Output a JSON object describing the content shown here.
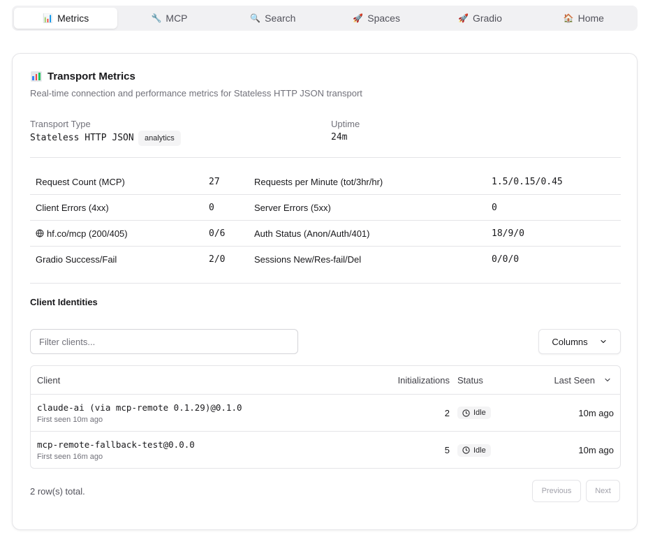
{
  "tabs": [
    {
      "label": "Metrics",
      "icon": "📊",
      "icon_name": "bar-chart-icon",
      "active": true
    },
    {
      "label": "MCP",
      "icon": "🔧",
      "icon_name": "wrench-icon"
    },
    {
      "label": "Search",
      "icon": "🔍",
      "icon_name": "magnifier-icon"
    },
    {
      "label": "Spaces",
      "icon": "🚀",
      "icon_name": "rocket-icon"
    },
    {
      "label": "Gradio",
      "icon": "🚀",
      "icon_name": "rocket-icon"
    },
    {
      "label": "Home",
      "icon": "🏠",
      "icon_name": "house-icon"
    }
  ],
  "card": {
    "title": "Transport Metrics",
    "subtitle": "Real-time connection and performance metrics for Stateless HTTP JSON transport"
  },
  "transport": {
    "type_label": "Transport Type",
    "type_value": "Stateless HTTP JSON",
    "badge": "analytics",
    "uptime_label": "Uptime",
    "uptime_value": "24m"
  },
  "metrics": [
    {
      "label1": "Request Count (MCP)",
      "value1": "27",
      "label2": "Requests per Minute (tot/3hr/hr)",
      "value2": "1.5/0.15/0.45"
    },
    {
      "label1": "Client Errors (4xx)",
      "value1": "0",
      "label2": "Server Errors (5xx)",
      "value2": "0"
    },
    {
      "label1": "hf.co/mcp (200/405)",
      "value1": "0/6",
      "label2": "Auth Status (Anon/Auth/401)",
      "value2": "18/9/0"
    },
    {
      "label1": "Gradio Success/Fail",
      "value1": "2/0",
      "label2": "Sessions New/Res-fail/Del",
      "value2": "0/0/0"
    }
  ],
  "clients_section": {
    "title": "Client Identities",
    "filter_placeholder": "Filter clients...",
    "columns_button": "Columns",
    "headers": {
      "client": "Client",
      "initializations": "Initializations",
      "status": "Status",
      "last_seen": "Last Seen"
    },
    "rows": [
      {
        "name": "claude-ai (via mcp-remote 0.1.29)@0.1.0",
        "first_seen": "First seen 10m ago",
        "initializations": "2",
        "status": "Idle",
        "last_seen": "10m ago"
      },
      {
        "name": "mcp-remote-fallback-test@0.0.0",
        "first_seen": "First seen 16m ago",
        "initializations": "5",
        "status": "Idle",
        "last_seen": "10m ago"
      }
    ],
    "rows_total": "2 row(s) total.",
    "previous": "Previous",
    "next": "Next"
  },
  "colors": {
    "bar_icon": [
      "#3b82f6",
      "#ef4444",
      "#22c55e"
    ]
  }
}
